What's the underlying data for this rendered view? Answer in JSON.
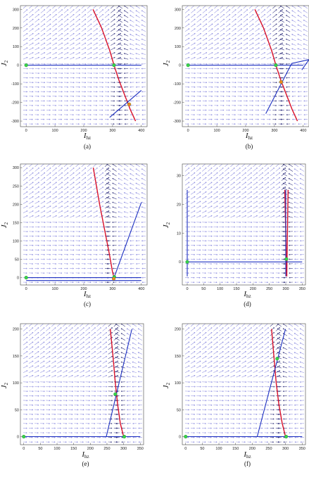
{
  "figure": {
    "xlabel": "I_hz",
    "ylabel": "J_2",
    "subpanel_labels": [
      "(a)",
      "(b)",
      "(c)",
      "(d)",
      "(e)",
      "(f)"
    ]
  },
  "colors": {
    "field_arrow": "#6b6bd6",
    "field_arrow_dark": "#2a2a7a",
    "nullcline_red": "#d8102a",
    "nullcline_blue": "#1c2fc0",
    "fixed_point_green": "#37d24a",
    "fixed_point_orange": "#f08a1c",
    "frame": "#444444"
  },
  "chart_data": [
    {
      "type": "scatter",
      "label": "(a)",
      "xlabel": "I_hz",
      "ylabel": "J_2",
      "xlim": [
        -20,
        420
      ],
      "ylim": [
        -330,
        320
      ],
      "xticks": [
        0,
        100,
        200,
        300,
        400
      ],
      "yticks": [
        -300,
        -200,
        -100,
        0,
        100,
        200,
        300
      ],
      "series": [
        {
          "color": "red",
          "kind": "curve",
          "x": [
            232,
            262,
            290,
            305,
            322,
            342,
            362,
            380
          ],
          "y": [
            300,
            200,
            80,
            0,
            -80,
            -160,
            -240,
            -300
          ]
        },
        {
          "color": "blue",
          "kind": "line",
          "x": [
            0,
            400
          ],
          "y": [
            0,
            0
          ]
        },
        {
          "color": "blue",
          "kind": "line",
          "x": [
            290,
            400
          ],
          "y": [
            -280,
            -135
          ]
        }
      ],
      "fixed_points": [
        {
          "x": 0,
          "y": 0,
          "color": "green"
        },
        {
          "x": 305,
          "y": 0,
          "color": "green"
        },
        {
          "x": 358,
          "y": -210,
          "color": "orange"
        }
      ]
    },
    {
      "type": "scatter",
      "label": "(b)",
      "xlabel": "I_hz",
      "ylabel": "J_2",
      "xlim": [
        -20,
        420
      ],
      "ylim": [
        -330,
        320
      ],
      "xticks": [
        0,
        100,
        200,
        300,
        400
      ],
      "yticks": [
        -300,
        -200,
        -100,
        0,
        100,
        200,
        300
      ],
      "series": [
        {
          "color": "red",
          "kind": "curve",
          "x": [
            232,
            262,
            290,
            305,
            322,
            342,
            362,
            380
          ],
          "y": [
            300,
            200,
            80,
            0,
            -80,
            -160,
            -240,
            -300
          ]
        },
        {
          "color": "blue",
          "kind": "line",
          "x": [
            0,
            400
          ],
          "y": [
            0,
            0
          ]
        },
        {
          "color": "blue",
          "kind": "line",
          "x": [
            270,
            360
          ],
          "y": [
            -260,
            10
          ]
        },
        {
          "color": "blue",
          "kind": "curve",
          "x": [
            360,
            390,
            420,
            395
          ],
          "y": [
            10,
            20,
            30,
            -25
          ]
        }
      ],
      "fixed_points": [
        {
          "x": 0,
          "y": 0,
          "color": "green"
        },
        {
          "x": 305,
          "y": 0,
          "color": "green"
        },
        {
          "x": 323,
          "y": -90,
          "color": "orange"
        }
      ]
    },
    {
      "type": "scatter",
      "label": "(c)",
      "xlabel": "I_hz",
      "ylabel": "J_2",
      "xlim": [
        -20,
        420
      ],
      "ylim": [
        -20,
        310
      ],
      "xticks": [
        0,
        100,
        200,
        300,
        400
      ],
      "yticks": [
        0,
        50,
        100,
        150,
        200,
        250,
        300
      ],
      "series": [
        {
          "color": "red",
          "kind": "curve",
          "x": [
            233,
            255,
            275,
            290,
            300,
            305
          ],
          "y": [
            300,
            200,
            120,
            60,
            15,
            0
          ]
        },
        {
          "color": "blue",
          "kind": "line",
          "x": [
            0,
            400
          ],
          "y": [
            0,
            0
          ]
        },
        {
          "color": "blue",
          "kind": "line",
          "x": [
            305,
            400
          ],
          "y": [
            0,
            205
          ]
        },
        {
          "color": "blue",
          "kind": "line",
          "x": [
            0,
            400
          ],
          "y": [
            -8,
            -8
          ]
        }
      ],
      "fixed_points": [
        {
          "x": 0,
          "y": 0,
          "color": "green"
        },
        {
          "x": 306,
          "y": 2,
          "color": "green"
        },
        {
          "x": 304,
          "y": -3,
          "color": "orange"
        }
      ]
    },
    {
      "type": "scatter",
      "label": "(d)",
      "xlabel": "I_hz",
      "ylabel": "J_2",
      "xlim": [
        -15,
        360
      ],
      "ylim": [
        -8,
        34
      ],
      "xticks": [
        0,
        50,
        100,
        150,
        200,
        250,
        300,
        350
      ],
      "yticks": [
        0,
        10,
        20,
        30
      ],
      "series": [
        {
          "color": "red",
          "kind": "line",
          "x": [
            297,
            303
          ],
          "y": [
            25,
            -5
          ]
        },
        {
          "color": "red",
          "kind": "line",
          "x": [
            307,
            303
          ],
          "y": [
            25,
            -5
          ]
        },
        {
          "color": "blue",
          "kind": "line",
          "x": [
            0,
            350
          ],
          "y": [
            0,
            0
          ]
        },
        {
          "color": "blue",
          "kind": "line",
          "x": [
            300,
            300
          ],
          "y": [
            -5,
            25
          ]
        },
        {
          "color": "blue",
          "kind": "line",
          "x": [
            0,
            0
          ],
          "y": [
            -5,
            25
          ]
        }
      ],
      "fixed_points": [
        {
          "x": 0,
          "y": 0,
          "color": "green"
        },
        {
          "x": 302,
          "y": 1,
          "color": "green"
        }
      ]
    },
    {
      "type": "scatter",
      "label": "(e)",
      "xlabel": "I_hz",
      "ylabel": "J_2",
      "xlim": [
        -10,
        360
      ],
      "ylim": [
        -15,
        210
      ],
      "xticks": [
        0,
        50,
        100,
        150,
        200,
        250,
        300,
        350
      ],
      "yticks": [
        0,
        50,
        100,
        150,
        200
      ],
      "series": [
        {
          "color": "red",
          "kind": "curve",
          "x": [
            260,
            268,
            275,
            282,
            290,
            300
          ],
          "y": [
            200,
            150,
            100,
            60,
            25,
            0
          ]
        },
        {
          "color": "blue",
          "kind": "line",
          "x": [
            0,
            350
          ],
          "y": [
            0,
            0
          ]
        },
        {
          "color": "blue",
          "kind": "line",
          "x": [
            248,
            325
          ],
          "y": [
            0,
            200
          ]
        }
      ],
      "fixed_points": [
        {
          "x": 0,
          "y": 0,
          "color": "green"
        },
        {
          "x": 275,
          "y": 79,
          "color": "green"
        },
        {
          "x": 302,
          "y": 0,
          "color": "green"
        }
      ]
    },
    {
      "type": "scatter",
      "label": "(f)",
      "xlabel": "I_hz",
      "ylabel": "J_2",
      "xlim": [
        -10,
        360
      ],
      "ylim": [
        -15,
        210
      ],
      "xticks": [
        0,
        50,
        100,
        150,
        200,
        250,
        300,
        350
      ],
      "yticks": [
        0,
        50,
        100,
        150,
        200
      ],
      "series": [
        {
          "color": "red",
          "kind": "curve",
          "x": [
            258,
            265,
            272,
            280,
            290,
            300
          ],
          "y": [
            200,
            150,
            100,
            60,
            25,
            0
          ]
        },
        {
          "color": "blue",
          "kind": "line",
          "x": [
            0,
            350
          ],
          "y": [
            0,
            0
          ]
        },
        {
          "color": "blue",
          "kind": "line",
          "x": [
            215,
            300
          ],
          "y": [
            0,
            200
          ]
        }
      ],
      "fixed_points": [
        {
          "x": 0,
          "y": 0,
          "color": "green"
        },
        {
          "x": 275,
          "y": 145,
          "color": "green"
        },
        {
          "x": 302,
          "y": 0,
          "color": "green"
        }
      ]
    }
  ]
}
